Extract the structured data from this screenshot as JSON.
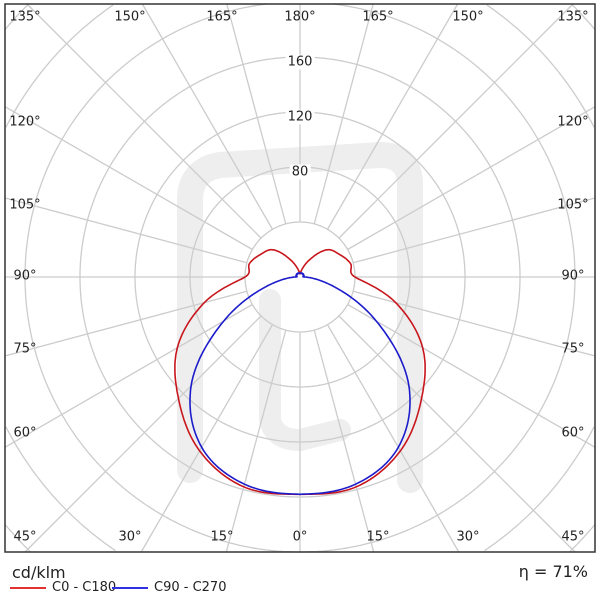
{
  "chart_data": {
    "type": "polar",
    "unit_label": "cd/klm",
    "efficiency": "η = 71%",
    "radial_ticks": [
      80,
      120,
      160
    ],
    "radial_grid_step": 40,
    "angle_step_deg": 15,
    "grid": true,
    "angle_labels": {
      "top": [
        "135°",
        "150°",
        "165°",
        "180°",
        "165°",
        "150°",
        "135°"
      ],
      "left": [
        "120°",
        "105°",
        "90°",
        "75°",
        "60°"
      ],
      "right": [
        "120°",
        "105°",
        "90°",
        "75°",
        "60°"
      ],
      "bottom": [
        "45°",
        "30°",
        "15°",
        "0°",
        "15°",
        "30°",
        "45°"
      ]
    },
    "angles": [
      0,
      15,
      30,
      45,
      60,
      75,
      90,
      105,
      120,
      135,
      150,
      165,
      180
    ],
    "series": [
      {
        "name": "C0 - C180",
        "color": "#c8161d",
        "values": [
          158,
          158,
          146,
          125,
          103,
          72,
          40,
          38,
          33,
          28,
          15,
          6,
          2
        ]
      },
      {
        "name": "C90 - C270",
        "color": "#1c1ccc",
        "values": [
          158,
          156,
          143,
          112,
          64,
          24,
          4,
          3,
          3,
          3,
          3,
          3,
          3
        ]
      }
    ],
    "legend_position": "bottom-left"
  }
}
